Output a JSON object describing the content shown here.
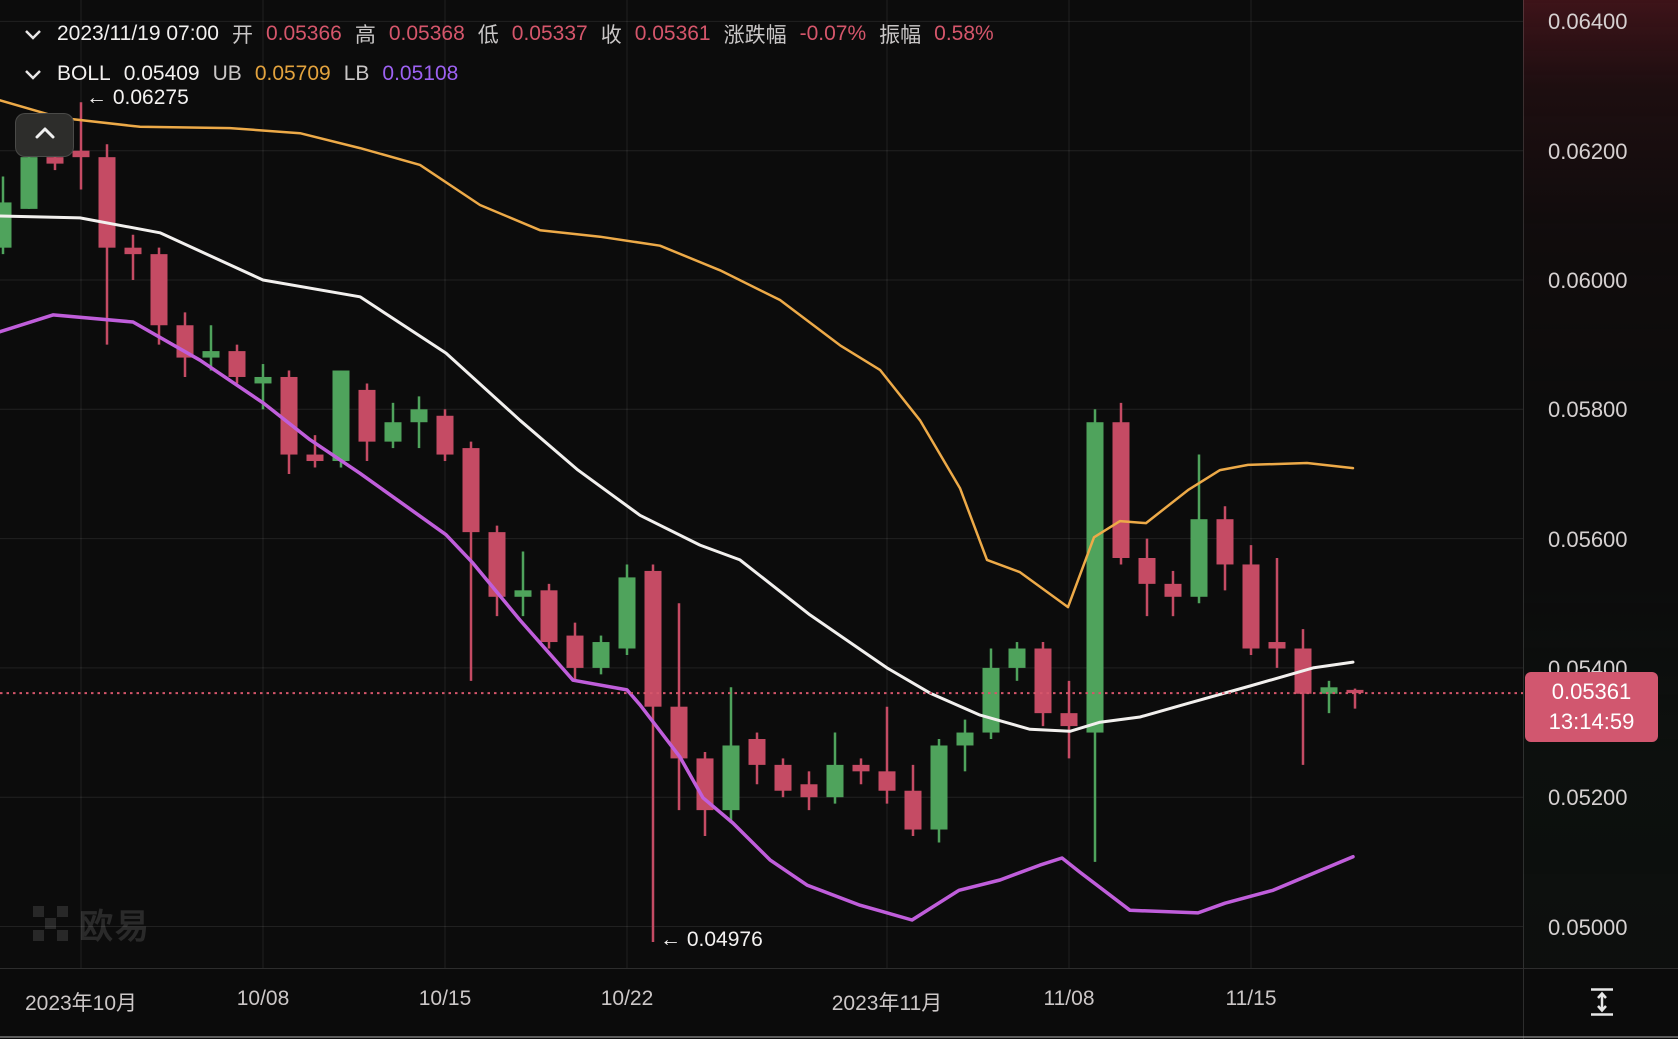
{
  "legend": {
    "datetime": "2023/11/19 07:00",
    "fields": [
      {
        "label": "开",
        "value": "0.05366"
      },
      {
        "label": "高",
        "value": "0.05368"
      },
      {
        "label": "低",
        "value": "0.05337"
      },
      {
        "label": "收",
        "value": "0.05361"
      },
      {
        "label": "涨跌幅",
        "value": "-0.07%"
      },
      {
        "label": "振幅",
        "value": "0.58%"
      }
    ],
    "boll_label": "BOLL",
    "boll_value": "0.05409",
    "ub_label": "UB",
    "ub_value": "0.05709",
    "lb_label": "LB",
    "lb_value": "0.05108"
  },
  "annotations": {
    "high": "← 0.06275",
    "low": "← 0.04976"
  },
  "last_price": {
    "price": "0.05361",
    "countdown": "13:14:59",
    "value": 0.05361
  },
  "watermark": {
    "text": "欧易"
  },
  "colors": {
    "up": "#4fa35c",
    "down": "#c54b64",
    "badge": "#d1576f",
    "band_upper": "#edaa48",
    "band_middle": "#f2f0ee",
    "band_lower": "#c05edb",
    "grid": "rgba(255,255,255,0.09)",
    "last_price_line": "#d5566b"
  },
  "chart_data": {
    "type": "candlestick",
    "indicator": "BOLL(20,2)",
    "y_axis": {
      "min": 0.0494,
      "max": 0.0645,
      "ticks": [
        0.064,
        0.062,
        0.06,
        0.058,
        0.056,
        0.054,
        0.052,
        0.05
      ],
      "tick_labels": [
        "0.06400",
        "0.06200",
        "0.06000",
        "0.05800",
        "0.05600",
        "0.05400",
        "0.05200",
        "0.05000"
      ]
    },
    "x_axis": {
      "ticks": [
        {
          "label": "2023年10月",
          "index": 3
        },
        {
          "label": "10/08",
          "index": 10
        },
        {
          "label": "10/15",
          "index": 17
        },
        {
          "label": "10/22",
          "index": 24
        },
        {
          "label": "2023年11月",
          "index": 34
        },
        {
          "label": "11/08",
          "index": 41
        },
        {
          "label": "11/15",
          "index": 48
        }
      ]
    },
    "candles": [
      {
        "date": "09/28",
        "o": 0.0605,
        "h": 0.0616,
        "l": 0.0604,
        "c": 0.0612
      },
      {
        "date": "09/29",
        "o": 0.0611,
        "h": 0.062,
        "l": 0.0611,
        "c": 0.0619
      },
      {
        "date": "09/30",
        "o": 0.0619,
        "h": 0.0621,
        "l": 0.0617,
        "c": 0.0618
      },
      {
        "date": "10/01",
        "o": 0.062,
        "h": 0.06275,
        "l": 0.0614,
        "c": 0.0619
      },
      {
        "date": "10/02",
        "o": 0.0619,
        "h": 0.0621,
        "l": 0.059,
        "c": 0.0605
      },
      {
        "date": "10/03",
        "o": 0.0605,
        "h": 0.0607,
        "l": 0.06,
        "c": 0.0604
      },
      {
        "date": "10/04",
        "o": 0.0604,
        "h": 0.0605,
        "l": 0.059,
        "c": 0.0593
      },
      {
        "date": "10/05",
        "o": 0.0593,
        "h": 0.0595,
        "l": 0.0585,
        "c": 0.0588
      },
      {
        "date": "10/06",
        "o": 0.0588,
        "h": 0.0593,
        "l": 0.0586,
        "c": 0.0589
      },
      {
        "date": "10/07",
        "o": 0.0589,
        "h": 0.059,
        "l": 0.0584,
        "c": 0.0585
      },
      {
        "date": "10/08",
        "o": 0.0584,
        "h": 0.0587,
        "l": 0.058,
        "c": 0.0585
      },
      {
        "date": "10/09",
        "o": 0.0585,
        "h": 0.0586,
        "l": 0.057,
        "c": 0.0573
      },
      {
        "date": "10/10",
        "o": 0.0573,
        "h": 0.0576,
        "l": 0.0571,
        "c": 0.0572
      },
      {
        "date": "10/11",
        "o": 0.0572,
        "h": 0.0586,
        "l": 0.0571,
        "c": 0.0586
      },
      {
        "date": "10/12",
        "o": 0.0583,
        "h": 0.0584,
        "l": 0.0572,
        "c": 0.0575
      },
      {
        "date": "10/13",
        "o": 0.0575,
        "h": 0.0581,
        "l": 0.0574,
        "c": 0.0578
      },
      {
        "date": "10/14",
        "o": 0.0578,
        "h": 0.0582,
        "l": 0.0574,
        "c": 0.058
      },
      {
        "date": "10/15",
        "o": 0.0579,
        "h": 0.058,
        "l": 0.0572,
        "c": 0.0573
      },
      {
        "date": "10/16",
        "o": 0.0574,
        "h": 0.0575,
        "l": 0.0538,
        "c": 0.0561
      },
      {
        "date": "10/17",
        "o": 0.0561,
        "h": 0.0562,
        "l": 0.0548,
        "c": 0.0551
      },
      {
        "date": "10/18",
        "o": 0.0551,
        "h": 0.0558,
        "l": 0.0548,
        "c": 0.0552
      },
      {
        "date": "10/19",
        "o": 0.0552,
        "h": 0.0553,
        "l": 0.0543,
        "c": 0.0544
      },
      {
        "date": "10/20",
        "o": 0.0545,
        "h": 0.0547,
        "l": 0.0538,
        "c": 0.054
      },
      {
        "date": "10/21",
        "o": 0.054,
        "h": 0.0545,
        "l": 0.0539,
        "c": 0.0544
      },
      {
        "date": "10/22",
        "o": 0.0543,
        "h": 0.0556,
        "l": 0.0542,
        "c": 0.0554
      },
      {
        "date": "10/23",
        "o": 0.0555,
        "h": 0.0556,
        "l": 0.04976,
        "c": 0.0534
      },
      {
        "date": "10/24",
        "o": 0.0534,
        "h": 0.055,
        "l": 0.0518,
        "c": 0.0526
      },
      {
        "date": "10/25",
        "o": 0.0526,
        "h": 0.0527,
        "l": 0.0514,
        "c": 0.0518
      },
      {
        "date": "10/26",
        "o": 0.0518,
        "h": 0.0537,
        "l": 0.0516,
        "c": 0.0528
      },
      {
        "date": "10/27",
        "o": 0.0529,
        "h": 0.053,
        "l": 0.0522,
        "c": 0.0525
      },
      {
        "date": "10/28",
        "o": 0.0525,
        "h": 0.0526,
        "l": 0.052,
        "c": 0.0521
      },
      {
        "date": "10/29",
        "o": 0.0522,
        "h": 0.0524,
        "l": 0.0518,
        "c": 0.052
      },
      {
        "date": "10/30",
        "o": 0.052,
        "h": 0.053,
        "l": 0.0519,
        "c": 0.0525
      },
      {
        "date": "10/31",
        "o": 0.0525,
        "h": 0.0526,
        "l": 0.0522,
        "c": 0.0524
      },
      {
        "date": "11/01",
        "o": 0.0524,
        "h": 0.0534,
        "l": 0.0519,
        "c": 0.0521
      },
      {
        "date": "11/02",
        "o": 0.0521,
        "h": 0.0525,
        "l": 0.0514,
        "c": 0.0515
      },
      {
        "date": "11/03",
        "o": 0.0515,
        "h": 0.0529,
        "l": 0.0513,
        "c": 0.0528
      },
      {
        "date": "11/04",
        "o": 0.0528,
        "h": 0.0532,
        "l": 0.0524,
        "c": 0.053
      },
      {
        "date": "11/05",
        "o": 0.053,
        "h": 0.0543,
        "l": 0.0529,
        "c": 0.054
      },
      {
        "date": "11/06",
        "o": 0.054,
        "h": 0.0544,
        "l": 0.0538,
        "c": 0.0543
      },
      {
        "date": "11/07",
        "o": 0.0543,
        "h": 0.0544,
        "l": 0.0531,
        "c": 0.0533
      },
      {
        "date": "11/08",
        "o": 0.0533,
        "h": 0.0538,
        "l": 0.0526,
        "c": 0.0531
      },
      {
        "date": "11/09",
        "o": 0.053,
        "h": 0.058,
        "l": 0.051,
        "c": 0.0578
      },
      {
        "date": "11/10",
        "o": 0.0578,
        "h": 0.0581,
        "l": 0.0556,
        "c": 0.0557
      },
      {
        "date": "11/11",
        "o": 0.0557,
        "h": 0.056,
        "l": 0.0548,
        "c": 0.0553
      },
      {
        "date": "11/12",
        "o": 0.0553,
        "h": 0.0555,
        "l": 0.0548,
        "c": 0.0551
      },
      {
        "date": "11/13",
        "o": 0.0551,
        "h": 0.0573,
        "l": 0.055,
        "c": 0.0563
      },
      {
        "date": "11/14",
        "o": 0.0563,
        "h": 0.0565,
        "l": 0.0552,
        "c": 0.0556
      },
      {
        "date": "11/15",
        "o": 0.0556,
        "h": 0.0559,
        "l": 0.0542,
        "c": 0.0543
      },
      {
        "date": "11/16",
        "o": 0.0544,
        "h": 0.0557,
        "l": 0.054,
        "c": 0.0543
      },
      {
        "date": "11/17",
        "o": 0.0543,
        "h": 0.0546,
        "l": 0.0525,
        "c": 0.0536
      },
      {
        "date": "11/18",
        "o": 0.0536,
        "h": 0.0538,
        "l": 0.0533,
        "c": 0.0537
      },
      {
        "date": "11/19",
        "o": 0.05366,
        "h": 0.05368,
        "l": 0.05337,
        "c": 0.05361
      }
    ],
    "bands": {
      "upper": [
        [
          0,
          0.06278
        ],
        [
          60,
          0.06251
        ],
        [
          140,
          0.06237
        ],
        [
          230,
          0.06235
        ],
        [
          300,
          0.06227
        ],
        [
          360,
          0.06204
        ],
        [
          420,
          0.06178
        ],
        [
          480,
          0.06116
        ],
        [
          540,
          0.06077
        ],
        [
          600,
          0.06067
        ],
        [
          660,
          0.06053
        ],
        [
          720,
          0.06015
        ],
        [
          780,
          0.05969
        ],
        [
          840,
          0.05899
        ],
        [
          880,
          0.05861
        ],
        [
          920,
          0.05783
        ],
        [
          960,
          0.05678
        ],
        [
          987,
          0.05567
        ],
        [
          1020,
          0.05548
        ],
        [
          1068,
          0.05494
        ],
        [
          1094,
          0.05602
        ],
        [
          1120,
          0.05627
        ],
        [
          1146,
          0.05624
        ],
        [
          1188,
          0.05675
        ],
        [
          1220,
          0.05706
        ],
        [
          1248,
          0.05714
        ],
        [
          1307,
          0.05717
        ],
        [
          1353,
          0.05709
        ]
      ],
      "middle": [
        [
          0,
          0.06099
        ],
        [
          80,
          0.06096
        ],
        [
          160,
          0.06073
        ],
        [
          263,
          0.06
        ],
        [
          360,
          0.05974
        ],
        [
          446,
          0.05887
        ],
        [
          520,
          0.05783
        ],
        [
          578,
          0.05706
        ],
        [
          640,
          0.05636
        ],
        [
          700,
          0.0559
        ],
        [
          740,
          0.05567
        ],
        [
          810,
          0.05482
        ],
        [
          887,
          0.054
        ],
        [
          930,
          0.05361
        ],
        [
          980,
          0.05327
        ],
        [
          1030,
          0.05305
        ],
        [
          1070,
          0.05302
        ],
        [
          1100,
          0.05316
        ],
        [
          1140,
          0.05324
        ],
        [
          1190,
          0.05346
        ],
        [
          1250,
          0.05372
        ],
        [
          1313,
          0.054
        ],
        [
          1353,
          0.05409
        ]
      ],
      "lower": [
        [
          0,
          0.0592
        ],
        [
          53,
          0.05946
        ],
        [
          133,
          0.05935
        ],
        [
          200,
          0.05876
        ],
        [
          263,
          0.0581
        ],
        [
          310,
          0.05753
        ],
        [
          360,
          0.05701
        ],
        [
          446,
          0.05606
        ],
        [
          473,
          0.05562
        ],
        [
          520,
          0.05474
        ],
        [
          573,
          0.05381
        ],
        [
          627,
          0.05366
        ],
        [
          640,
          0.05343
        ],
        [
          680,
          0.05262
        ],
        [
          703,
          0.05199
        ],
        [
          733,
          0.0516
        ],
        [
          770,
          0.05103
        ],
        [
          807,
          0.05064
        ],
        [
          860,
          0.05033
        ],
        [
          912,
          0.0501
        ],
        [
          959,
          0.05056
        ],
        [
          1000,
          0.05072
        ],
        [
          1040,
          0.05095
        ],
        [
          1062,
          0.05106
        ],
        [
          1080,
          0.05084
        ],
        [
          1130,
          0.05025
        ],
        [
          1198,
          0.05021
        ],
        [
          1225,
          0.05036
        ],
        [
          1273,
          0.05056
        ],
        [
          1353,
          0.05108
        ]
      ]
    }
  }
}
